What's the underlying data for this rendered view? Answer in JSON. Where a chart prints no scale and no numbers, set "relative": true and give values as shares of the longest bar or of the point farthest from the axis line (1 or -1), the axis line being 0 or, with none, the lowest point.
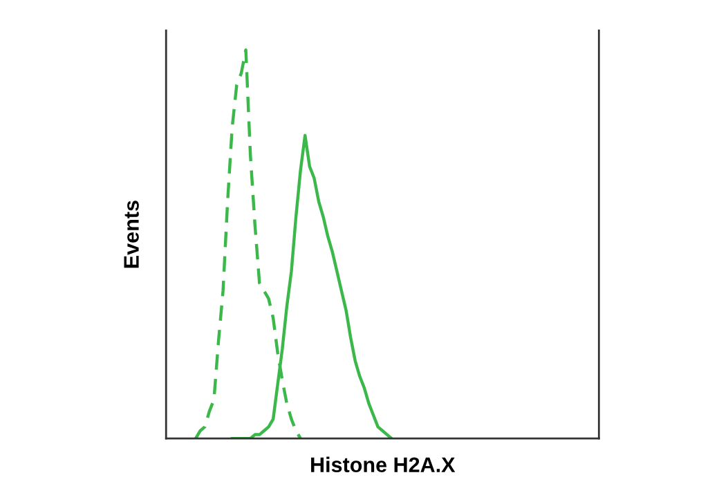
{
  "chart_data": {
    "type": "line",
    "relative": true,
    "xlabel": "Histone H2A.X",
    "ylabel": "Events",
    "grid": false,
    "categories": [
      null,
      null,
      null,
      null,
      null,
      null,
      null,
      null,
      null,
      null,
      null,
      null,
      null,
      null,
      null,
      null,
      null,
      null,
      null,
      null,
      null,
      null,
      null,
      null,
      null,
      null,
      null,
      null,
      null,
      null,
      null,
      null,
      null,
      null,
      null,
      null,
      null,
      null,
      null,
      null,
      null,
      null,
      null,
      null,
      null,
      null,
      null,
      null,
      null,
      null,
      null,
      null,
      null,
      null,
      null,
      null,
      null,
      null,
      null,
      null,
      null,
      null,
      null,
      null,
      null,
      null,
      null,
      null,
      null,
      null,
      null,
      null,
      null,
      null,
      null,
      null,
      null,
      null,
      null,
      null,
      null,
      null,
      null,
      null,
      null,
      null,
      null,
      null,
      null,
      null,
      null,
      null,
      null,
      null,
      null
    ],
    "series": [
      {
        "color": "#3cb84a",
        "line_style": "dashed",
        "values": [
          null,
          null,
          null,
          null,
          null,
          null,
          0,
          0.02,
          0.03,
          0.07,
          0.1,
          0.25,
          0.38,
          0.61,
          0.8,
          0.91,
          0.94,
          1,
          0.73,
          0.55,
          0.4,
          0.38,
          0.36,
          0.31,
          0.22,
          0.15,
          0.09,
          0.05,
          0.02,
          0,
          null,
          null,
          null,
          null,
          null,
          null,
          null,
          null,
          null,
          null,
          null,
          null,
          null,
          null,
          null,
          null,
          null,
          null,
          null,
          null,
          null,
          null,
          null,
          null,
          null,
          null,
          null,
          null,
          null,
          null,
          null,
          null,
          null,
          null,
          null,
          null,
          null,
          null,
          null,
          null,
          null,
          null,
          null,
          null,
          null,
          null,
          null,
          null,
          null,
          null,
          null,
          null,
          null,
          null,
          null,
          null,
          null,
          null,
          null,
          null,
          null,
          null,
          null,
          null,
          null
        ]
      },
      {
        "color": "#3cb84a",
        "line_style": "solid",
        "values": [
          null,
          null,
          null,
          null,
          null,
          null,
          null,
          null,
          null,
          null,
          null,
          null,
          null,
          null,
          0,
          0,
          0,
          0,
          0,
          0.01,
          0.01,
          0.02,
          0.03,
          0.05,
          0.14,
          0.23,
          0.34,
          0.43,
          0.57,
          0.69,
          0.78,
          0.7,
          0.67,
          0.61,
          0.57,
          0.52,
          0.48,
          0.43,
          0.38,
          0.33,
          0.26,
          0.2,
          0.16,
          0.13,
          0.09,
          0.06,
          0.03,
          0.02,
          0.01,
          0,
          null,
          null,
          null,
          null,
          null,
          null,
          null,
          null,
          null,
          null,
          null,
          null,
          null,
          null,
          null,
          null,
          null,
          null,
          null,
          null,
          null,
          null,
          null,
          null,
          null,
          null,
          null,
          null,
          null,
          null,
          null,
          null,
          null,
          null,
          null,
          null,
          null,
          null,
          null,
          null,
          null,
          null,
          null,
          null,
          null
        ]
      }
    ]
  }
}
